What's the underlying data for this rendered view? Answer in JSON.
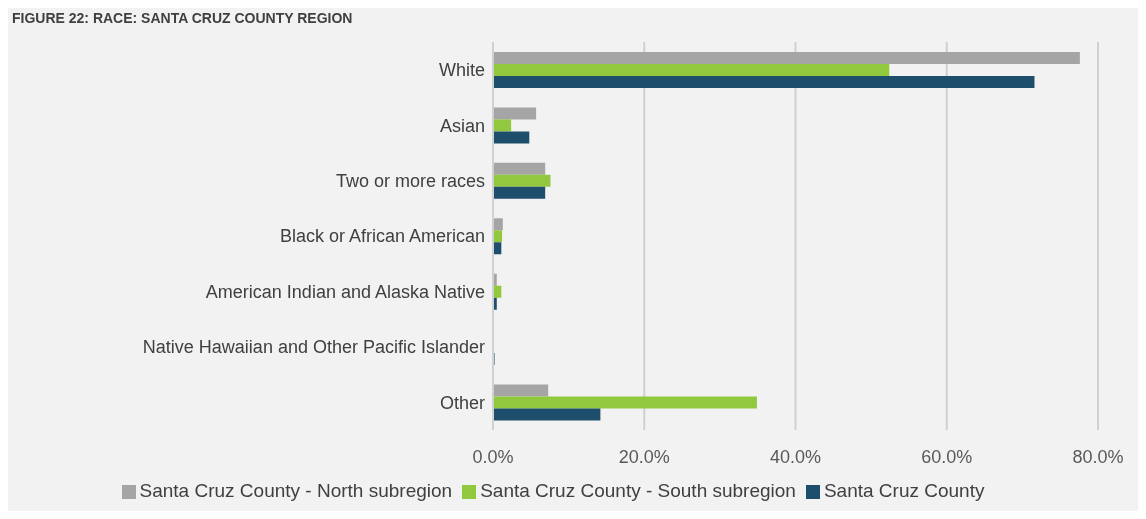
{
  "chart_data": {
    "type": "bar",
    "orientation": "horizontal",
    "title": "FIGURE 22: RACE: SANTA CRUZ COUNTY REGION",
    "categories": [
      "White",
      "Asian",
      "Two or more races",
      "Black or African American",
      "American Indian and Alaska Native",
      "Native Hawaiian and Other Pacific Islander",
      "Other"
    ],
    "series": [
      {
        "name": "Santa Cruz County - North subregion",
        "color": "#a5a5a5",
        "values": [
          77.6,
          5.7,
          6.9,
          1.3,
          0.5,
          null,
          7.3
        ]
      },
      {
        "name": "Santa Cruz County - South subregion",
        "color": "#92c83e",
        "values": [
          52.4,
          2.4,
          7.6,
          1.2,
          1.1,
          0,
          34.9
        ]
      },
      {
        "name": "Santa Cruz County",
        "color": "#1d4e6b",
        "values": [
          71.6,
          4.8,
          6.9,
          1.1,
          0.5,
          0.2,
          14.2
        ]
      }
    ],
    "xlim": [
      0,
      80
    ],
    "xticks": [
      {
        "value": 0,
        "label": "0.0%"
      },
      {
        "value": 20,
        "label": "20.0%"
      },
      {
        "value": 40,
        "label": "40.0%"
      },
      {
        "value": 60,
        "label": "60.0%"
      },
      {
        "value": 80,
        "label": "80.0%"
      }
    ],
    "grid": "x",
    "legend": "bottom"
  }
}
